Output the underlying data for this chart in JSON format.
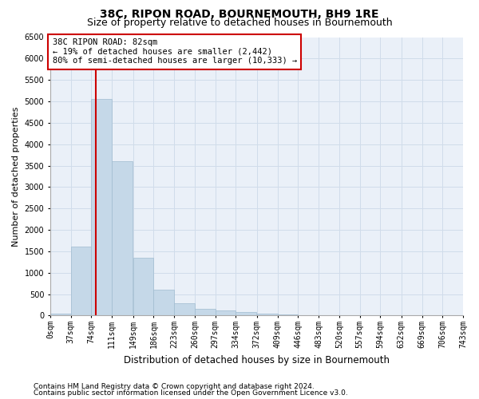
{
  "title": "38C, RIPON ROAD, BOURNEMOUTH, BH9 1RE",
  "subtitle": "Size of property relative to detached houses in Bournemouth",
  "xlabel": "Distribution of detached houses by size in Bournemouth",
  "ylabel": "Number of detached properties",
  "footer1": "Contains HM Land Registry data © Crown copyright and database right 2024.",
  "footer2": "Contains public sector information licensed under the Open Government Licence v3.0.",
  "bar_color": "#c5d8e8",
  "bar_edge_color": "#a0bcd0",
  "grid_color": "#d0dcea",
  "bg_color": "#eaf0f8",
  "property_line_color": "#cc0000",
  "annotation_box_color": "#cc0000",
  "annotation_text": "38C RIPON ROAD: 82sqm\n← 19% of detached houses are smaller (2,442)\n80% of semi-detached houses are larger (10,333) →",
  "property_sqm": 82,
  "bins": [
    0,
    37,
    74,
    111,
    149,
    186,
    223,
    260,
    297,
    334,
    372,
    409,
    446,
    483,
    520,
    557,
    594,
    632,
    669,
    706,
    743
  ],
  "counts": [
    50,
    1600,
    5050,
    3600,
    1350,
    600,
    280,
    150,
    120,
    75,
    50,
    30,
    15,
    0,
    0,
    0,
    0,
    0,
    0,
    0
  ],
  "ylim": [
    0,
    6500
  ],
  "yticks": [
    0,
    500,
    1000,
    1500,
    2000,
    2500,
    3000,
    3500,
    4000,
    4500,
    5000,
    5500,
    6000,
    6500
  ],
  "title_fontsize": 10,
  "subtitle_fontsize": 9,
  "xlabel_fontsize": 8.5,
  "ylabel_fontsize": 8,
  "tick_fontsize": 7,
  "annotation_fontsize": 7.5,
  "footer_fontsize": 6.5
}
